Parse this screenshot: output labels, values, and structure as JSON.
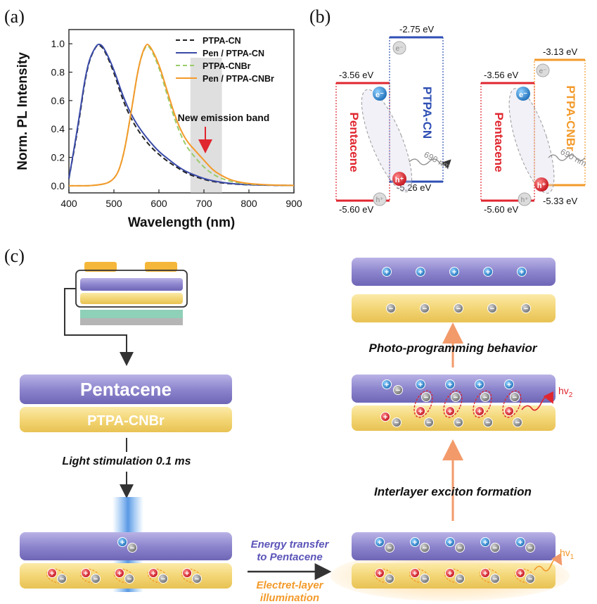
{
  "panels": {
    "a": "(a)",
    "b": "(b)",
    "c": "(c)"
  },
  "chart_data": {
    "type": "line",
    "xlabel": "Wavelength (nm)",
    "ylabel": "Norm. PL Intensity",
    "xlim": [
      400,
      900
    ],
    "ylim": [
      -0.05,
      1.1
    ],
    "xticks": [
      "400",
      "500",
      "600",
      "700",
      "800",
      "900"
    ],
    "yticks": [
      "0.0",
      "0.2",
      "0.4",
      "0.6",
      "0.8",
      "1.0"
    ],
    "legend_position": "top-right",
    "annotation": "New emission band",
    "highlight_band": [
      670,
      740
    ],
    "series": [
      {
        "name": "PTPA-CN",
        "style": "dashed",
        "color": "#222222",
        "x": [
          400,
          420,
          440,
          460,
          470,
          480,
          500,
          520,
          540,
          560,
          580,
          600,
          620,
          640,
          660,
          680,
          700,
          720,
          740,
          760,
          780,
          800,
          840,
          900
        ],
        "y": [
          0.05,
          0.4,
          0.84,
          0.99,
          0.99,
          0.95,
          0.8,
          0.6,
          0.46,
          0.36,
          0.28,
          0.22,
          0.17,
          0.13,
          0.09,
          0.065,
          0.045,
          0.03,
          0.02,
          0.014,
          0.01,
          0.007,
          0.004,
          0.002
        ]
      },
      {
        "name": "Pen / PTPA-CN",
        "style": "solid",
        "color": "#3a4aa8",
        "x": [
          400,
          420,
          440,
          460,
          470,
          480,
          500,
          520,
          540,
          560,
          580,
          600,
          620,
          640,
          660,
          680,
          700,
          720,
          740,
          760,
          780,
          800,
          840,
          900
        ],
        "y": [
          0.05,
          0.42,
          0.85,
          0.99,
          1.0,
          0.96,
          0.82,
          0.63,
          0.49,
          0.39,
          0.31,
          0.24,
          0.19,
          0.14,
          0.1,
          0.075,
          0.05,
          0.035,
          0.024,
          0.016,
          0.011,
          0.008,
          0.004,
          0.002
        ]
      },
      {
        "name": "PTPA-CNBr",
        "style": "dashed",
        "color": "#9acd6a",
        "x": [
          400,
          460,
          500,
          520,
          540,
          555,
          570,
          580,
          600,
          620,
          640,
          660,
          680,
          700,
          720,
          740,
          760,
          780,
          800,
          840,
          900
        ],
        "y": [
          0.0,
          0.0,
          0.03,
          0.18,
          0.55,
          0.85,
          0.99,
          0.98,
          0.84,
          0.62,
          0.42,
          0.28,
          0.2,
          0.13,
          0.08,
          0.05,
          0.03,
          0.02,
          0.012,
          0.005,
          0.002
        ]
      },
      {
        "name": "Pen / PTPA-CNBr",
        "style": "solid",
        "color": "#f39a2a",
        "x": [
          400,
          460,
          500,
          520,
          540,
          555,
          570,
          580,
          600,
          620,
          640,
          660,
          680,
          700,
          720,
          740,
          760,
          780,
          800,
          840,
          900
        ],
        "y": [
          0.0,
          0.0,
          0.03,
          0.18,
          0.55,
          0.85,
          1.0,
          0.99,
          0.86,
          0.65,
          0.45,
          0.32,
          0.25,
          0.18,
          0.11,
          0.07,
          0.04,
          0.025,
          0.015,
          0.006,
          0.002
        ]
      }
    ]
  },
  "energy": {
    "left": {
      "lumo_pen": "-3.56 eV",
      "homo_pen": "-5.60 eV",
      "lumo_acc": "-2.75 eV",
      "homo_acc": "-5.26 eV",
      "pen_label": "Pentacene",
      "acc_label": "PTPA-CN",
      "emission": "690 nm"
    },
    "right": {
      "lumo_pen": "-3.56 eV",
      "homo_pen": "-5.60 eV",
      "lumo_acc": "-3.13 eV",
      "homo_acc": "-5.33 eV",
      "pen_label": "Pentacene",
      "acc_label": "PTPA-CNBr",
      "emission": "690 nm"
    },
    "electron": "e⁻",
    "hole": "h⁺",
    "colors": {
      "pentacene": "#e0262f",
      "ptpa_cn": "#2f4fb4",
      "ptpa_cnbr": "#f39a2a"
    }
  },
  "schematic": {
    "layer_pen": "Pentacene",
    "layer_acc": "PTPA-CNBr",
    "step1": "Light stimulation 0.1 ms",
    "energy_transfer_1": "Energy transfer",
    "energy_transfer_2": "to Pentacene",
    "electret_1": "Electret-layer",
    "electret_2": "illumination",
    "interlayer": "Interlayer exciton formation",
    "photo_programming": "Photo-programming behavior",
    "hv1": "hv",
    "hv1_sub": "1",
    "hv2": "hv",
    "hv2_sub": "2",
    "plus": "+",
    "minus": "−",
    "colors": {
      "purple": "#8a82c8",
      "yellow": "#f2d77a",
      "orange_arrow": "#f39a6a",
      "blue_glow": "#4a8fe0"
    }
  }
}
